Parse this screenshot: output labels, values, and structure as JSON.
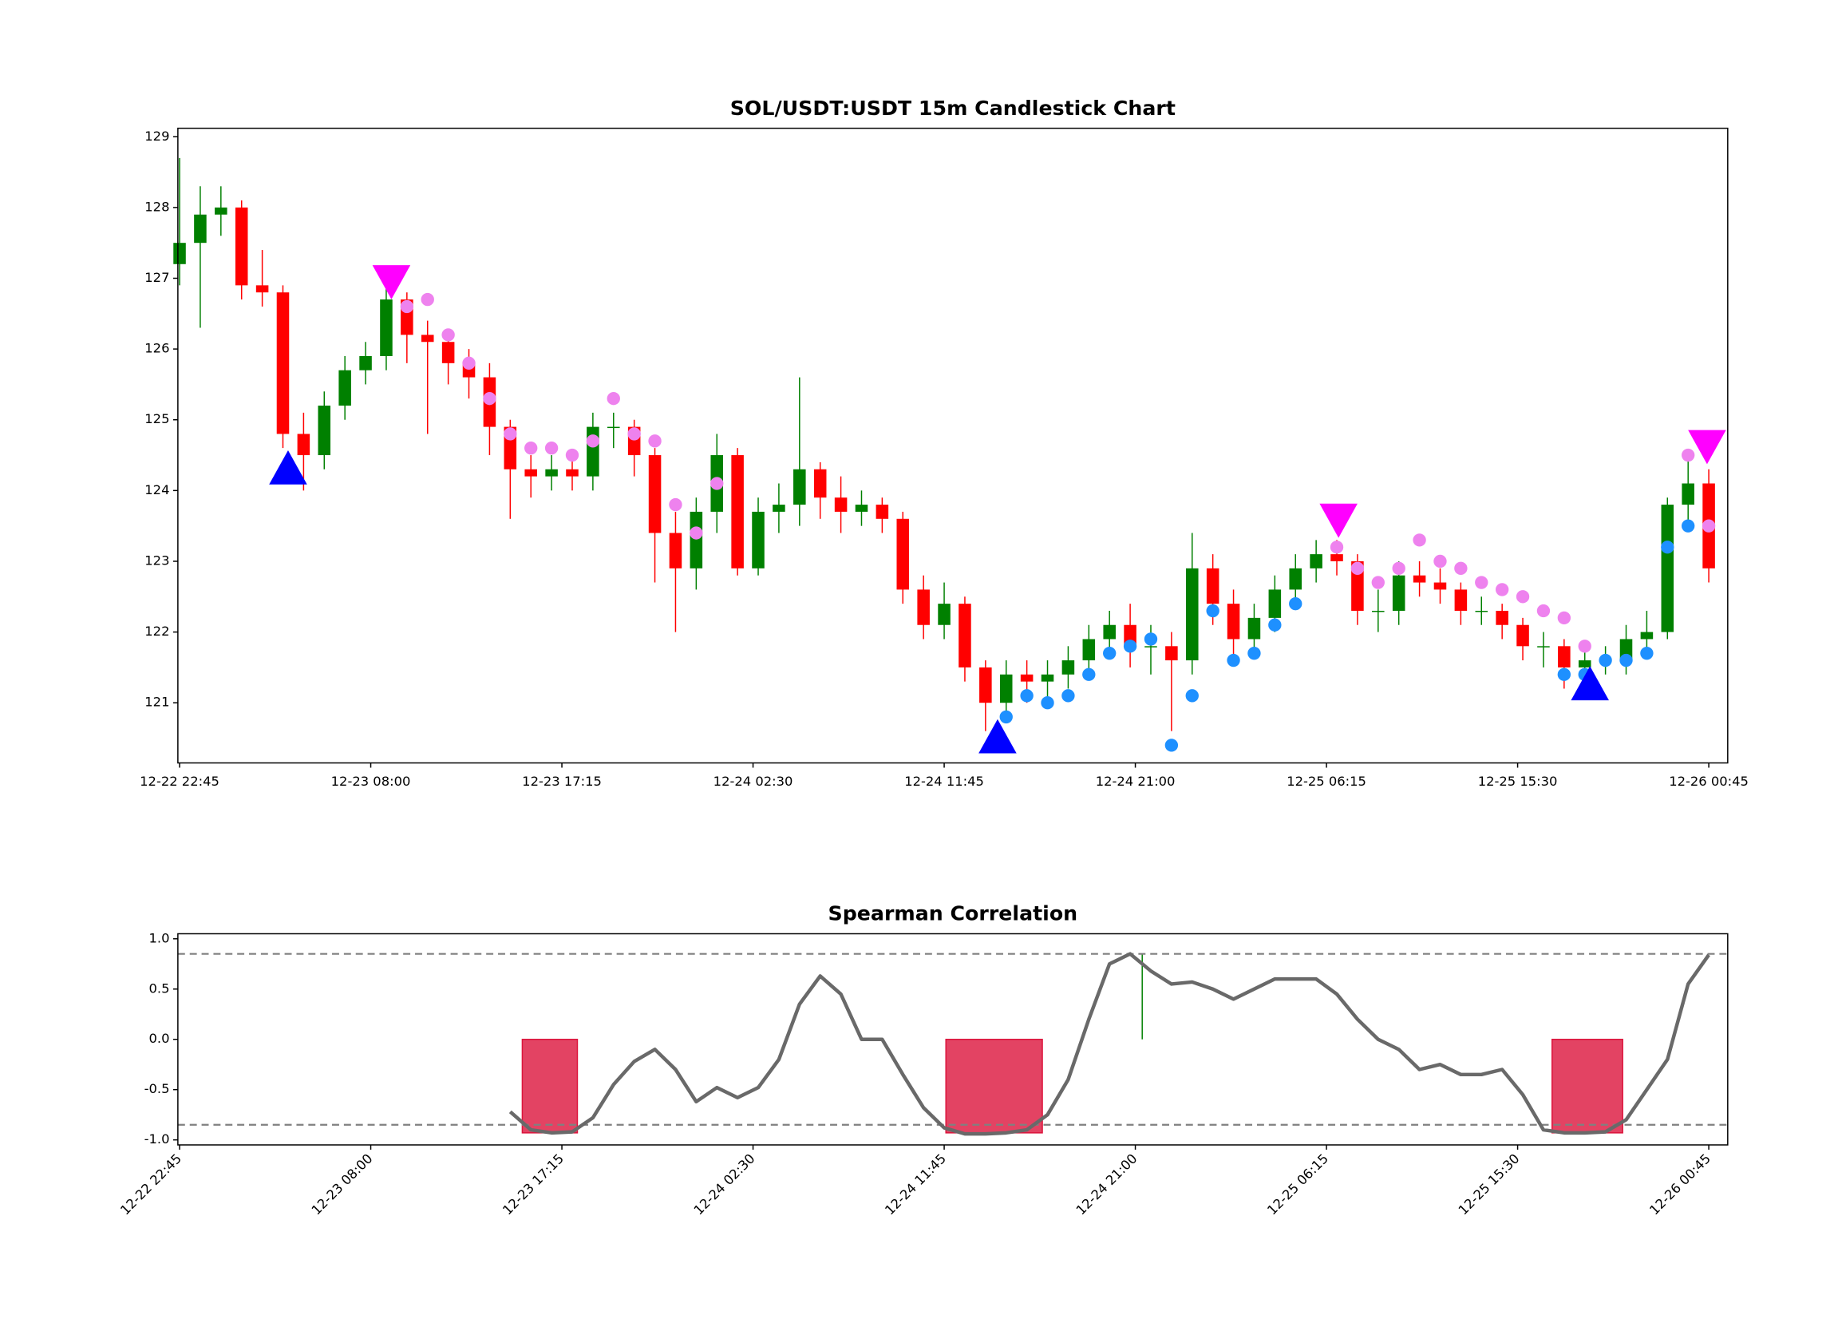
{
  "chart_data": [
    {
      "type": "candlestick",
      "title": "SOL/USDT:USDT 15m Candlestick Chart",
      "x": [
        "12-22 22:45",
        "12-22 23:45",
        "12-23 00:45",
        "12-23 01:45",
        "12-23 02:45",
        "12-23 03:45",
        "12-23 04:45",
        "12-23 05:45",
        "12-23 06:45",
        "12-23 07:45",
        "12-23 08:45",
        "12-23 09:45",
        "12-23 10:45",
        "12-23 11:45",
        "12-23 12:45",
        "12-23 13:45",
        "12-23 14:45",
        "12-23 15:45",
        "12-23 16:45",
        "12-23 17:45",
        "12-23 18:45",
        "12-23 19:45",
        "12-23 20:45",
        "12-23 21:45",
        "12-23 22:45",
        "12-23 23:45",
        "12-24 00:45",
        "12-24 01:45",
        "12-24 02:45",
        "12-24 03:45",
        "12-24 04:45",
        "12-24 05:45",
        "12-24 06:45",
        "12-24 07:45",
        "12-24 08:45",
        "12-24 09:45",
        "12-24 10:45",
        "12-24 11:45",
        "12-24 12:45",
        "12-24 13:45",
        "12-24 14:45",
        "12-24 15:45",
        "12-24 16:45",
        "12-24 17:45",
        "12-24 18:45",
        "12-24 19:45",
        "12-24 20:45",
        "12-24 21:45",
        "12-24 22:45",
        "12-24 23:45",
        "12-25 00:45",
        "12-25 01:45",
        "12-25 02:45",
        "12-25 03:45",
        "12-25 04:45",
        "12-25 05:45",
        "12-25 06:45",
        "12-25 07:45",
        "12-25 08:45",
        "12-25 09:45",
        "12-25 10:45",
        "12-25 11:45",
        "12-25 12:45",
        "12-25 13:45",
        "12-25 14:45",
        "12-25 15:45",
        "12-25 16:45",
        "12-25 17:45",
        "12-25 18:45",
        "12-25 19:45",
        "12-25 20:45",
        "12-25 21:45",
        "12-25 22:45",
        "12-25 23:45",
        "12-26 00:45"
      ],
      "open": [
        127.2,
        127.5,
        127.9,
        128.0,
        126.9,
        126.8,
        124.8,
        124.5,
        125.2,
        125.7,
        125.9,
        126.7,
        126.2,
        126.1,
        125.8,
        125.6,
        124.9,
        124.3,
        124.2,
        124.3,
        124.2,
        124.9,
        124.9,
        124.5,
        123.4,
        122.9,
        123.7,
        124.5,
        122.9,
        123.7,
        123.8,
        124.3,
        123.9,
        123.7,
        123.8,
        123.6,
        122.6,
        122.1,
        122.4,
        121.5,
        121.0,
        121.4,
        121.3,
        121.4,
        121.6,
        121.9,
        122.1,
        121.8,
        121.8,
        121.6,
        122.9,
        122.4,
        121.9,
        122.2,
        122.6,
        122.9,
        123.1,
        123.0,
        122.3,
        122.3,
        122.8,
        122.7,
        122.6,
        122.3,
        122.3,
        122.1,
        121.8,
        121.8,
        121.5,
        121.6,
        121.6,
        121.9,
        122.0,
        123.8,
        124.1
      ],
      "high": [
        128.7,
        128.3,
        128.3,
        128.1,
        127.4,
        126.9,
        125.1,
        125.4,
        125.9,
        126.1,
        126.9,
        126.8,
        126.4,
        126.2,
        126.0,
        125.8,
        125.0,
        124.5,
        124.5,
        124.5,
        125.1,
        125.1,
        125.0,
        124.6,
        123.7,
        123.9,
        124.8,
        124.6,
        123.9,
        124.1,
        125.6,
        124.4,
        124.2,
        124.0,
        123.9,
        123.7,
        122.8,
        122.7,
        122.5,
        121.6,
        121.6,
        121.6,
        121.6,
        121.8,
        122.1,
        122.3,
        122.4,
        122.1,
        122.0,
        123.4,
        123.1,
        122.6,
        122.4,
        122.8,
        123.1,
        123.3,
        123.3,
        123.1,
        122.6,
        123.0,
        123.0,
        122.9,
        122.7,
        122.5,
        122.4,
        122.2,
        122.0,
        121.9,
        121.8,
        121.8,
        122.1,
        122.3,
        123.9,
        124.5,
        124.3
      ],
      "low": [
        126.9,
        126.3,
        127.6,
        126.7,
        126.6,
        124.6,
        124.0,
        124.3,
        125.0,
        125.5,
        125.7,
        125.8,
        124.8,
        125.5,
        125.3,
        124.5,
        123.6,
        123.9,
        124.0,
        124.0,
        124.0,
        124.6,
        124.2,
        122.7,
        122.0,
        122.6,
        123.4,
        122.8,
        122.8,
        123.4,
        123.5,
        123.6,
        123.4,
        123.5,
        123.4,
        122.4,
        121.9,
        121.9,
        121.3,
        120.6,
        120.8,
        121.0,
        121.0,
        121.2,
        121.4,
        121.7,
        121.5,
        121.4,
        120.6,
        121.4,
        122.1,
        121.6,
        121.7,
        122.0,
        122.4,
        122.7,
        122.8,
        122.1,
        122.0,
        122.1,
        122.5,
        122.4,
        122.1,
        122.1,
        121.9,
        121.6,
        121.5,
        121.2,
        121.3,
        121.4,
        121.4,
        121.7,
        121.9,
        123.5,
        122.7
      ],
      "close": [
        127.5,
        127.9,
        128.0,
        126.9,
        126.8,
        124.8,
        124.5,
        125.2,
        125.7,
        125.9,
        126.7,
        126.2,
        126.1,
        125.8,
        125.6,
        124.9,
        124.3,
        124.2,
        124.3,
        124.2,
        124.9,
        124.9,
        124.5,
        123.4,
        122.9,
        123.7,
        124.5,
        122.9,
        123.7,
        123.8,
        124.3,
        123.9,
        123.7,
        123.8,
        123.6,
        122.6,
        122.1,
        122.4,
        121.5,
        121.0,
        121.4,
        121.3,
        121.4,
        121.6,
        121.9,
        122.1,
        121.8,
        121.8,
        121.6,
        122.9,
        122.4,
        121.9,
        122.2,
        122.6,
        122.9,
        123.1,
        123.0,
        122.3,
        122.3,
        122.8,
        122.7,
        122.6,
        122.3,
        122.3,
        122.1,
        121.8,
        121.8,
        121.5,
        121.6,
        121.6,
        121.9,
        122.0,
        123.8,
        124.1,
        122.9
      ],
      "up_color": "green",
      "down_color": "red",
      "markers": [
        {
          "color": "violet",
          "x": [
            "12-23 09:45",
            "12-23 10:45",
            "12-23 11:45",
            "12-23 12:45",
            "12-23 13:45",
            "12-23 14:45",
            "12-23 15:45",
            "12-23 16:45",
            "12-23 17:45",
            "12-23 18:45",
            "12-23 19:45",
            "12-23 20:45",
            "12-23 21:45",
            "12-23 22:45",
            "12-23 23:45",
            "12-24 00:45",
            "12-25 06:45",
            "12-25 07:45",
            "12-25 08:45",
            "12-25 09:45",
            "12-25 10:45",
            "12-25 11:45",
            "12-25 12:45",
            "12-25 13:45",
            "12-25 14:45",
            "12-25 15:45",
            "12-25 16:45",
            "12-25 17:45",
            "12-25 18:45",
            "12-25 23:45",
            "12-26 00:45"
          ],
          "y": [
            126.6,
            126.7,
            126.2,
            125.8,
            125.3,
            124.8,
            124.6,
            124.6,
            124.5,
            124.7,
            125.3,
            124.8,
            124.7,
            123.8,
            123.4,
            124.1,
            123.2,
            122.9,
            122.7,
            122.9,
            123.3,
            123.0,
            122.9,
            122.7,
            122.6,
            122.5,
            122.3,
            122.2,
            121.8,
            124.5,
            123.5
          ]
        },
        {
          "color": "dodgerblue",
          "x": [
            "12-24 14:45",
            "12-24 15:45",
            "12-24 16:45",
            "12-24 17:45",
            "12-24 18:45",
            "12-24 19:45",
            "12-24 20:45",
            "12-24 21:45",
            "12-24 22:45",
            "12-24 23:45",
            "12-25 00:45",
            "12-25 01:45",
            "12-25 02:45",
            "12-25 03:45",
            "12-25 04:45",
            "12-25 17:45",
            "12-25 18:45",
            "12-25 19:45",
            "12-25 20:45",
            "12-25 21:45",
            "12-25 22:45",
            "12-25 23:45"
          ],
          "y": [
            120.8,
            121.1,
            121.0,
            121.1,
            121.4,
            121.7,
            121.8,
            121.9,
            120.4,
            121.1,
            122.3,
            121.6,
            121.7,
            122.1,
            122.4,
            121.4,
            121.4,
            121.6,
            121.6,
            121.7,
            123.2,
            123.5
          ]
        }
      ],
      "up_triangles": {
        "color": "blue",
        "x": [
          "12-23 04:00",
          "12-24 14:20",
          "12-25 19:00"
        ],
        "y": [
          124.3,
          120.5,
          121.25
        ]
      },
      "down_triangles": {
        "color": "magenta",
        "x": [
          "12-23 09:00",
          "12-25 06:50",
          "12-26 00:40"
        ],
        "y": [
          126.97,
          123.6,
          124.64
        ]
      },
      "xlim": [
        "12-22 22:40",
        "12-26 01:40"
      ],
      "ylim": [
        120.15,
        129.12
      ],
      "xticks": [
        "12-22 22:45",
        "12-23 08:00",
        "12-23 17:15",
        "12-24 02:30",
        "12-24 11:45",
        "12-24 21:00",
        "12-25 06:15",
        "12-25 15:30",
        "12-26 00:45"
      ],
      "yticks": [
        121,
        122,
        123,
        124,
        125,
        126,
        127,
        128,
        129
      ]
    },
    {
      "type": "line",
      "title": "Spearman Correlation",
      "color": "dimgray",
      "x": [
        "12-23 14:45",
        "12-23 15:45",
        "12-23 16:45",
        "12-23 17:45",
        "12-23 18:45",
        "12-23 19:45",
        "12-23 20:45",
        "12-23 21:45",
        "12-23 22:45",
        "12-23 23:45",
        "12-24 00:45",
        "12-24 01:45",
        "12-24 02:45",
        "12-24 03:45",
        "12-24 04:45",
        "12-24 05:45",
        "12-24 06:45",
        "12-24 07:45",
        "12-24 08:45",
        "12-24 09:45",
        "12-24 10:45",
        "12-24 11:45",
        "12-24 12:45",
        "12-24 13:45",
        "12-24 14:45",
        "12-24 15:45",
        "12-24 16:45",
        "12-24 17:45",
        "12-24 18:45",
        "12-24 19:45",
        "12-24 20:45",
        "12-24 21:45",
        "12-24 22:45",
        "12-24 23:45",
        "12-25 00:45",
        "12-25 01:45",
        "12-25 02:45",
        "12-25 03:45",
        "12-25 04:45",
        "12-25 05:45",
        "12-25 06:45",
        "12-25 07:45",
        "12-25 08:45",
        "12-25 09:45",
        "12-25 10:45",
        "12-25 11:45",
        "12-25 12:45",
        "12-25 13:45",
        "12-25 14:45",
        "12-25 15:45",
        "12-25 16:45",
        "12-25 17:45",
        "12-25 18:45",
        "12-25 19:45",
        "12-25 20:45",
        "12-25 21:45",
        "12-25 22:45",
        "12-25 23:45",
        "12-26 00:45"
      ],
      "values": [
        -0.72,
        -0.9,
        -0.93,
        -0.92,
        -0.78,
        -0.45,
        -0.22,
        -0.1,
        -0.3,
        -0.62,
        -0.48,
        -0.58,
        -0.48,
        -0.2,
        0.35,
        0.63,
        0.45,
        0.0,
        0.0,
        -0.35,
        -0.68,
        -0.88,
        -0.94,
        -0.94,
        -0.93,
        -0.9,
        -0.75,
        -0.4,
        0.2,
        0.75,
        0.85,
        0.68,
        0.55,
        0.57,
        0.5,
        0.4,
        0.5,
        0.6,
        0.6,
        0.6,
        0.45,
        0.2,
        0.0,
        -0.1,
        -0.3,
        -0.25,
        -0.35,
        -0.35,
        -0.3,
        -0.55,
        -0.9,
        -0.93,
        -0.93,
        -0.92,
        -0.8,
        -0.5,
        -0.2,
        0.55,
        0.84
      ],
      "hlines": {
        "color": "gray",
        "linestyle": "dashed",
        "values": [
          0.85,
          -0.85
        ]
      },
      "bars": {
        "color": "#dc143c",
        "x_start": [
          "12-23 15:20",
          "12-24 11:50",
          "12-25 17:10"
        ],
        "x_end": [
          "12-23 18:00",
          "12-24 16:30",
          "12-25 20:35"
        ],
        "values": [
          -0.93,
          -0.93,
          -0.93
        ]
      },
      "vlines": {
        "color": "green",
        "x": [
          "12-24 21:20"
        ],
        "values": [
          0.85
        ]
      },
      "xlim": [
        "12-22 22:40",
        "12-26 01:40"
      ],
      "ylim": [
        -1.05,
        1.05
      ],
      "xtick_rotation": 45,
      "xticks": [
        "12-22 22:45",
        "12-23 08:00",
        "12-23 17:15",
        "12-24 02:30",
        "12-24 11:45",
        "12-24 21:00",
        "12-25 06:15",
        "12-25 15:30",
        "12-26 00:45"
      ],
      "yticks": [
        {
          "value": -1,
          "label": "-1.0"
        },
        -0.5,
        {
          "value": 0,
          "label": "0.0"
        },
        0.5,
        {
          "value": 1,
          "label": "1.0"
        }
      ]
    }
  ]
}
